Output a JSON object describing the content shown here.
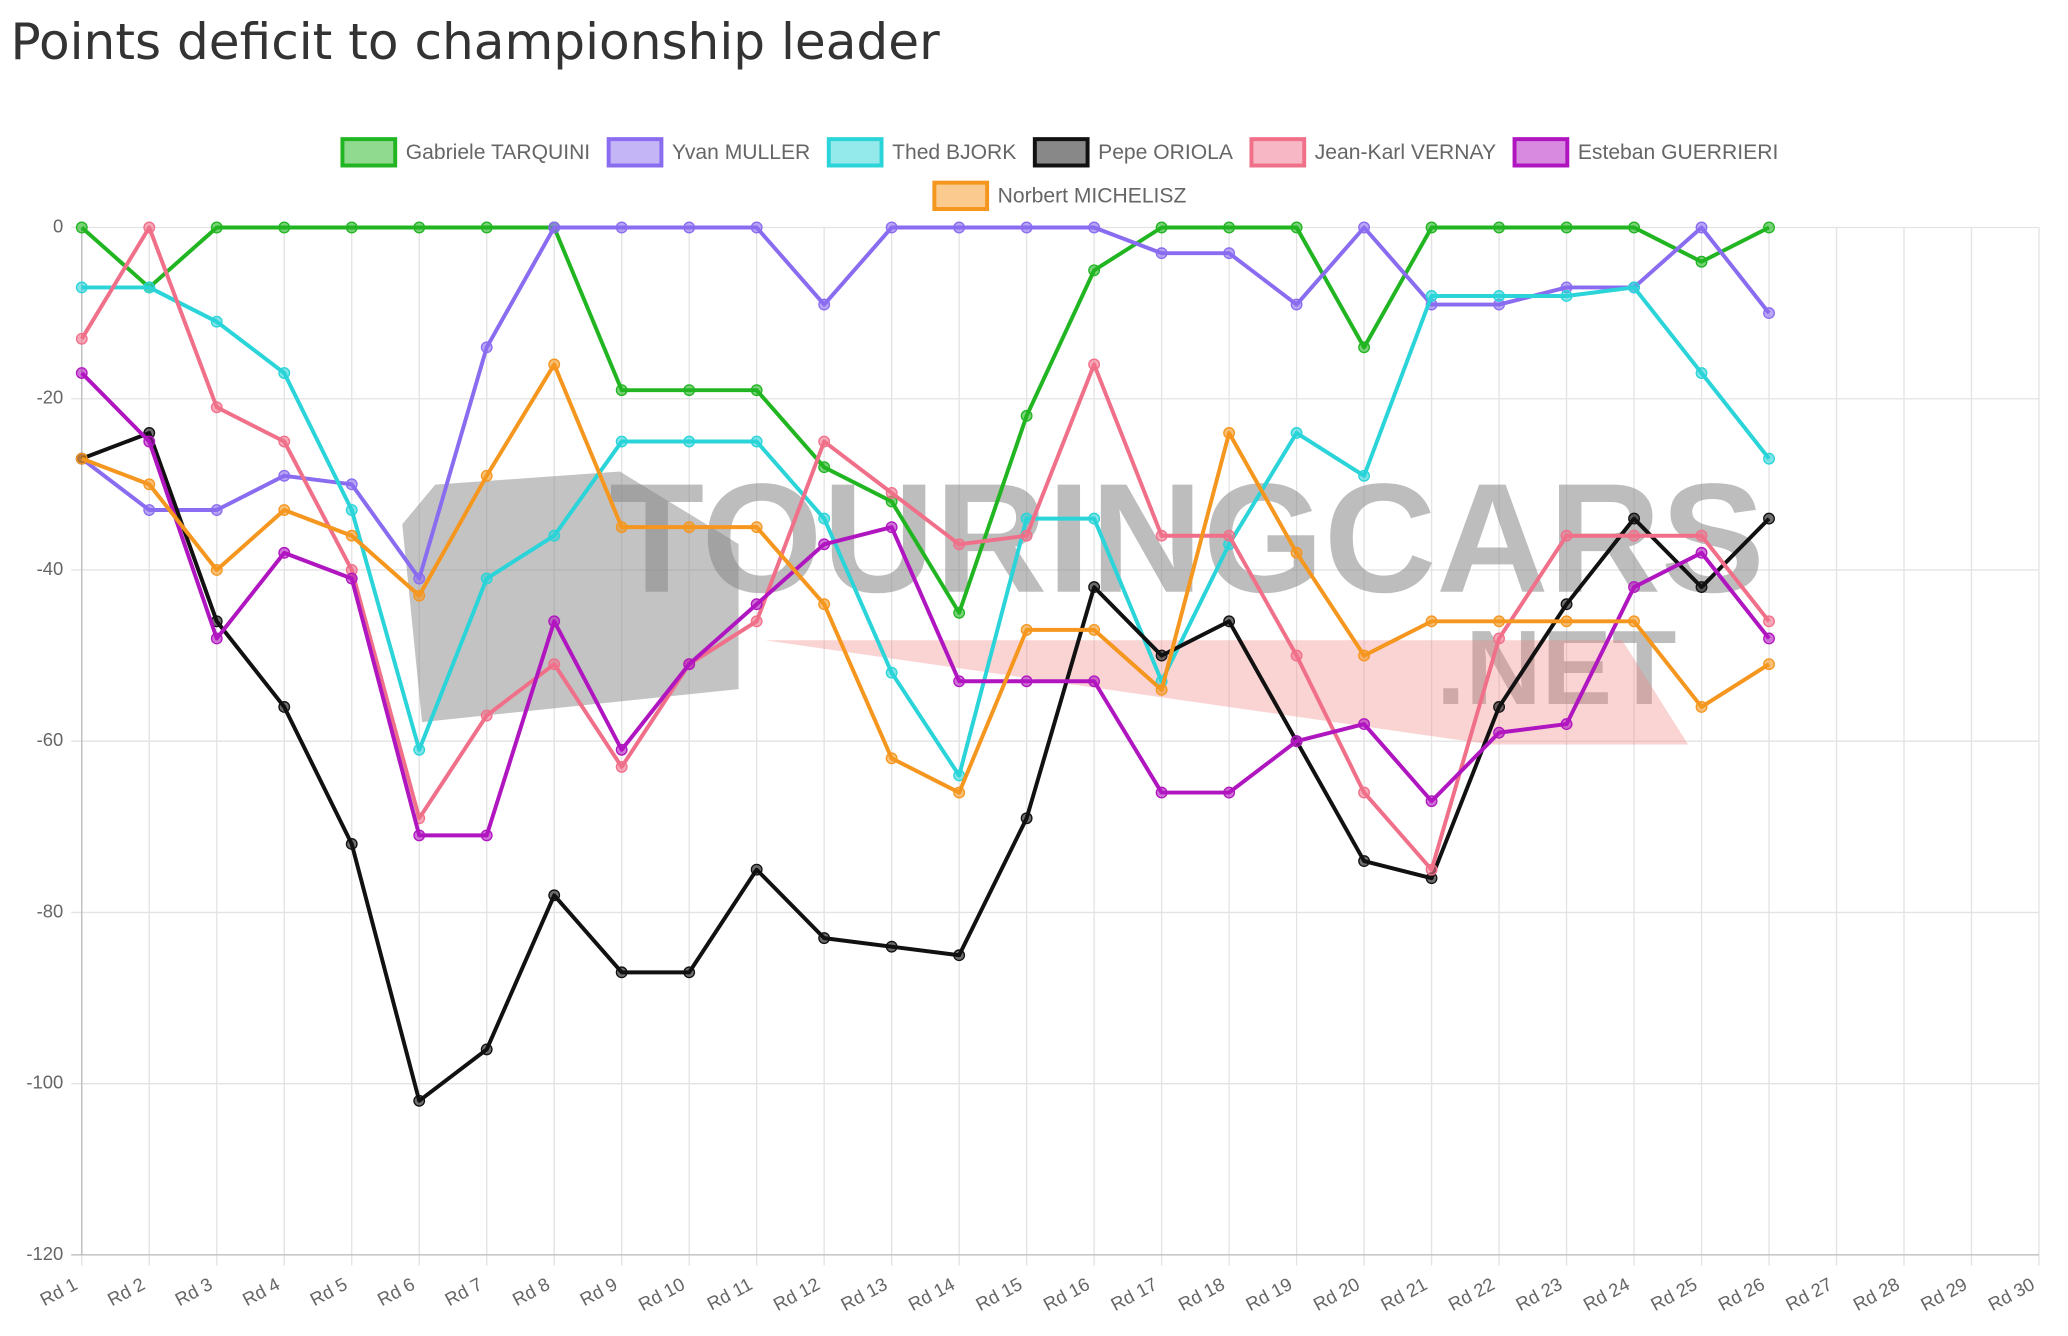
{
  "chart_data": {
    "type": "line",
    "title": "Points deficit to championship leader",
    "watermark": [
      "TOURINGCARS",
      ".NET"
    ],
    "categories": [
      "Rd 1",
      "Rd 2",
      "Rd 3",
      "Rd 4",
      "Rd 5",
      "Rd 6",
      "Rd 7",
      "Rd 8",
      "Rd 9",
      "Rd 10",
      "Rd 11",
      "Rd 12",
      "Rd 13",
      "Rd 14",
      "Rd 15",
      "Rd 16",
      "Rd 17",
      "Rd 18",
      "Rd 19",
      "Rd 20",
      "Rd 21",
      "Rd 22",
      "Rd 23",
      "Rd 24",
      "Rd 25",
      "Rd 26",
      "Rd 27",
      "Rd 28",
      "Rd 29",
      "Rd 30"
    ],
    "series": [
      {
        "name": "Gabriele TARQUINI",
        "color": "#22b522",
        "values": [
          0,
          -7,
          0,
          0,
          0,
          0,
          0,
          0,
          -19,
          -19,
          -19,
          -28,
          -32,
          -45,
          -22,
          -5,
          0,
          0,
          0,
          -14,
          0,
          0,
          0,
          0,
          -4,
          0,
          null,
          null,
          null,
          null
        ]
      },
      {
        "name": "Yvan MULLER",
        "color": "#8a6cf0",
        "values": [
          -27,
          -33,
          -33,
          -29,
          -30,
          -41,
          -14,
          0,
          0,
          0,
          0,
          -9,
          0,
          0,
          0,
          0,
          -3,
          -3,
          -9,
          0,
          -9,
          -9,
          -7,
          -7,
          0,
          -10,
          null,
          null,
          null,
          null
        ]
      },
      {
        "name": "Thed BJORK",
        "color": "#2ad4d8",
        "values": [
          -7,
          -7,
          -11,
          -17,
          -33,
          -61,
          -41,
          -36,
          -25,
          -25,
          -25,
          -34,
          -52,
          -64,
          -34,
          -34,
          -53,
          -37,
          -24,
          -29,
          -8,
          -8,
          -8,
          -7,
          -17,
          -27,
          null,
          null,
          null,
          null
        ]
      },
      {
        "name": "Pepe ORIOLA",
        "color": "#111111",
        "values": [
          -27,
          -24,
          -46,
          -56,
          -72,
          -102,
          -96,
          -78,
          -87,
          -87,
          -75,
          -83,
          -84,
          -85,
          -69,
          -42,
          -50,
          -46,
          -60,
          -74,
          -76,
          -56,
          -44,
          -34,
          -42,
          -34,
          null,
          null,
          null,
          null
        ]
      },
      {
        "name": "Jean-Karl VERNAY",
        "color": "#f0708a",
        "values": [
          -13,
          0,
          -21,
          -25,
          -40,
          -69,
          -57,
          -51,
          -63,
          -51,
          -46,
          -25,
          -31,
          -37,
          -36,
          -16,
          -36,
          -36,
          -50,
          -66,
          -75,
          -48,
          -36,
          -36,
          -36,
          -46,
          null,
          null,
          null,
          null
        ]
      },
      {
        "name": "Esteban GUERRIERI",
        "color": "#b016c0",
        "values": [
          -17,
          -25,
          -48,
          -38,
          -41,
          -71,
          -71,
          -46,
          -61,
          -51,
          -44,
          -37,
          -35,
          -53,
          -53,
          -53,
          -66,
          -66,
          -60,
          -58,
          -67,
          -59,
          -58,
          -42,
          -38,
          -48,
          null,
          null,
          null,
          null
        ]
      },
      {
        "name": "Norbert MICHELISZ",
        "color": "#f5961e",
        "values": [
          -27,
          -30,
          -40,
          -33,
          -36,
          -43,
          -29,
          -16,
          -35,
          -35,
          -35,
          -44,
          -62,
          -66,
          -47,
          -47,
          -54,
          -24,
          -38,
          -50,
          -46,
          -46,
          -46,
          -46,
          -56,
          -51,
          null,
          null,
          null,
          null
        ]
      }
    ],
    "ylim": [
      -120,
      0
    ],
    "yticks": [
      -120,
      -100,
      -80,
      -60,
      -40,
      -20,
      0
    ],
    "grid": true
  }
}
